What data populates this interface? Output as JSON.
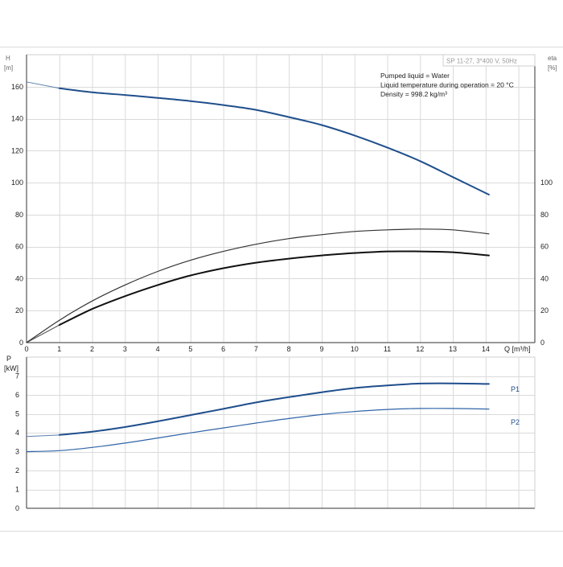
{
  "chart_data": [
    {
      "type": "line",
      "panel": "head-efficiency",
      "legend_box": "SP 11-27, 3*400 V, 50Hz",
      "notes": [
        "Pumped liquid = Water",
        "Liquid temperature during operation = 20 °C",
        "Density = 998.2 kg/m³"
      ],
      "left_axis": {
        "label": "H",
        "unit": "[m]",
        "ylim": [
          0,
          180
        ],
        "ticks": [
          "0",
          "20",
          "40",
          "60",
          "80",
          "100",
          "120",
          "140",
          "160"
        ]
      },
      "right_axis": {
        "label": "eta",
        "unit": "[%]",
        "ylim": [
          0,
          180
        ],
        "ticks": [
          "0",
          "20",
          "40",
          "60",
          "80",
          "100"
        ]
      },
      "x_axis": {
        "label": "Q [m³/h]",
        "xlim": [
          0,
          15.5
        ],
        "ticks": [
          "0",
          "1",
          "2",
          "3",
          "4",
          "5",
          "6",
          "7",
          "8",
          "9",
          "10",
          "11",
          "12",
          "13",
          "14"
        ]
      },
      "grid": true,
      "series": [
        {
          "color": "#1f4e8c",
          "axis": "left",
          "x": [
            0,
            1,
            2,
            3,
            4,
            5,
            6,
            7,
            8,
            9,
            10,
            11,
            12,
            13,
            14.1
          ],
          "y": [
            163,
            159,
            156.5,
            154.8,
            153,
            151,
            148.5,
            145.5,
            141,
            136,
            129.5,
            122,
            113.5,
            103.5,
            92.5
          ],
          "thin_extension_to_x": 1
        },
        {
          "color": "#111111",
          "axis": "right",
          "x": [
            1,
            2,
            3,
            4,
            5,
            6,
            7,
            8,
            9,
            10,
            11,
            12,
            13,
            14.1
          ],
          "y": [
            11,
            21,
            29,
            36,
            42,
            46.5,
            50,
            52.5,
            54.5,
            56,
            57,
            57,
            56.5,
            54.5
          ],
          "thin_extension_to_x": 0
        },
        {
          "color": "#333333",
          "axis": "right",
          "x": [
            0,
            1,
            2,
            3,
            4,
            5,
            6,
            7,
            8,
            9,
            10,
            11,
            12,
            13,
            14.1
          ],
          "y": [
            0,
            14,
            26,
            36,
            44.5,
            51.5,
            57,
            61.5,
            65,
            67.5,
            69.5,
            70.5,
            71,
            70.5,
            68
          ]
        }
      ]
    },
    {
      "type": "line",
      "panel": "power",
      "y_axis": {
        "label": "P",
        "unit": "[kW]",
        "ylim": [
          0,
          8
        ],
        "ticks": [
          "0",
          "1",
          "2",
          "3",
          "4",
          "5",
          "6",
          "7"
        ]
      },
      "x_axis": {
        "xlim": [
          0,
          15.5
        ]
      },
      "grid": true,
      "series": [
        {
          "name": "P1",
          "color": "#1f4e8c",
          "x": [
            1,
            2,
            3,
            4,
            5,
            6,
            7,
            8,
            9,
            10,
            11,
            12,
            13,
            14.1
          ],
          "y": [
            3.88,
            4.05,
            4.3,
            4.6,
            4.93,
            5.26,
            5.6,
            5.88,
            6.14,
            6.36,
            6.5,
            6.6,
            6.61,
            6.58
          ],
          "thin_extension_to_x": 0,
          "thin_extension_y0": 3.8
        },
        {
          "name": "P2",
          "color": "#2f64a8",
          "x": [
            0,
            1,
            2,
            3,
            4,
            5,
            6,
            7,
            8,
            9,
            10,
            11,
            12,
            13,
            14.1
          ],
          "y": [
            3.0,
            3.05,
            3.22,
            3.45,
            3.72,
            3.99,
            4.25,
            4.51,
            4.75,
            4.96,
            5.12,
            5.23,
            5.28,
            5.28,
            5.25
          ]
        }
      ]
    }
  ]
}
